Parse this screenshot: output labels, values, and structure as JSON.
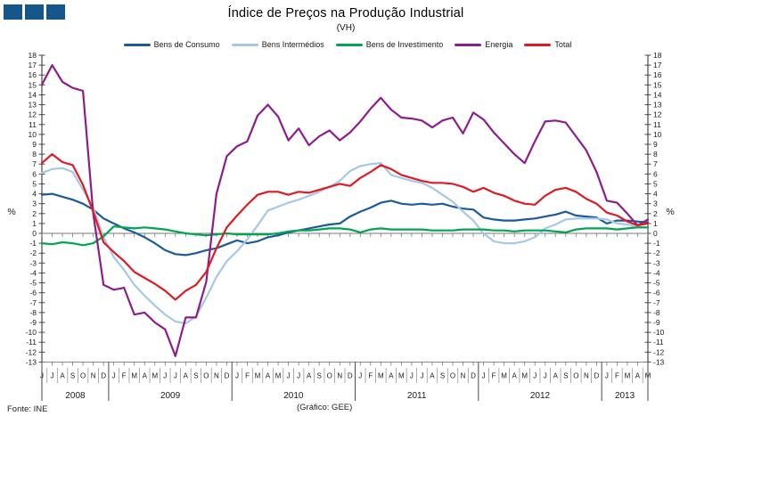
{
  "header": {
    "title": "Índice de Preços na Produção Industrial",
    "subtitle": "(VH)",
    "logo_squares": 3,
    "logo_color": "#15568C"
  },
  "footer": {
    "source": "Fonte: INE",
    "credit": "(Gráfico:  GEE)"
  },
  "axis": {
    "y_unit_label": "%",
    "y_min": -13,
    "y_max": 18,
    "y_step": 1
  },
  "chart_data": {
    "type": "line",
    "title": "Índice de Preços na Produção Industrial",
    "subtitle": "(VH)",
    "ylabel": "%",
    "ylim": [
      -13,
      18
    ],
    "grid": false,
    "legend_position": "top",
    "x_months": [
      "J",
      "J",
      "A",
      "S",
      "O",
      "N",
      "D",
      "J",
      "F",
      "M",
      "A",
      "M",
      "J",
      "J",
      "A",
      "S",
      "O",
      "N",
      "D",
      "J",
      "F",
      "M",
      "A",
      "M",
      "J",
      "J",
      "A",
      "S",
      "O",
      "N",
      "D",
      "J",
      "F",
      "M",
      "A",
      "M",
      "J",
      "J",
      "A",
      "S",
      "O",
      "N",
      "D",
      "J",
      "F",
      "M",
      "A",
      "M",
      "J",
      "J",
      "A",
      "S",
      "O",
      "N",
      "D",
      "J",
      "F",
      "M",
      "A",
      "M"
    ],
    "years": [
      {
        "label": "2008",
        "months": 7
      },
      {
        "label": "2009",
        "months": 12
      },
      {
        "label": "2010",
        "months": 12
      },
      {
        "label": "2011",
        "months": 12
      },
      {
        "label": "2012",
        "months": 12
      },
      {
        "label": "2013",
        "months": 5
      }
    ],
    "series": [
      {
        "name": "Bens de Consumo",
        "color": "#1B5A9B",
        "values": [
          3.9,
          4.0,
          3.7,
          3.4,
          3.0,
          2.4,
          1.5,
          1.0,
          0.5,
          0.1,
          -0.4,
          -1.0,
          -1.7,
          -2.1,
          -2.2,
          -2.0,
          -1.7,
          -1.5,
          -1.1,
          -0.7,
          -1.0,
          -0.8,
          -0.4,
          -0.2,
          0.1,
          0.3,
          0.5,
          0.7,
          0.9,
          1.0,
          1.7,
          2.2,
          2.6,
          3.1,
          3.3,
          3.0,
          2.9,
          3.0,
          2.9,
          3.0,
          2.7,
          2.5,
          2.4,
          1.6,
          1.4,
          1.3,
          1.3,
          1.4,
          1.5,
          1.7,
          1.9,
          2.2,
          1.8,
          1.7,
          1.6,
          1.0,
          1.3,
          1.3,
          1.2,
          1.1
        ]
      },
      {
        "name": "Bens Intermédios",
        "color": "#A5C8E8",
        "values": [
          6.1,
          6.5,
          6.6,
          6.2,
          4.4,
          2.6,
          -0.4,
          -2.4,
          -3.7,
          -5.2,
          -6.3,
          -7.3,
          -8.2,
          -8.9,
          -9.1,
          -8.4,
          -6.5,
          -4.4,
          -2.8,
          -1.8,
          -0.6,
          0.8,
          2.3,
          2.7,
          3.1,
          3.4,
          3.8,
          4.2,
          4.7,
          5.3,
          6.3,
          6.8,
          7.0,
          7.1,
          5.9,
          5.6,
          5.3,
          5.1,
          4.6,
          3.9,
          3.2,
          2.2,
          1.3,
          0.0,
          -0.8,
          -1.0,
          -1.0,
          -0.8,
          -0.4,
          0.5,
          0.9,
          1.4,
          1.5,
          1.5,
          1.5,
          1.4,
          1.0,
          0.9,
          0.6,
          0.6
        ]
      },
      {
        "name": "Bens de Investimento",
        "color": "#00A550",
        "values": [
          -1.0,
          -1.1,
          -0.9,
          -1.0,
          -1.2,
          -1.0,
          -0.3,
          0.7,
          0.6,
          0.5,
          0.6,
          0.5,
          0.4,
          0.2,
          0.0,
          -0.1,
          -0.2,
          -0.1,
          0.0,
          -0.1,
          -0.1,
          -0.1,
          -0.1,
          0.0,
          0.2,
          0.3,
          0.3,
          0.4,
          0.5,
          0.5,
          0.4,
          0.1,
          0.4,
          0.5,
          0.4,
          0.4,
          0.4,
          0.4,
          0.3,
          0.3,
          0.3,
          0.4,
          0.4,
          0.4,
          0.3,
          0.3,
          0.2,
          0.3,
          0.3,
          0.3,
          0.2,
          0.1,
          0.4,
          0.5,
          0.5,
          0.5,
          0.4,
          0.5,
          0.6,
          0.6
        ]
      },
      {
        "name": "Energia",
        "color": "#8C1E8C",
        "values": [
          15.0,
          17.0,
          15.3,
          14.7,
          14.4,
          2.0,
          -5.2,
          -5.7,
          -5.5,
          -8.2,
          -8.0,
          -9.0,
          -9.7,
          -12.4,
          -8.5,
          -8.5,
          -4.9,
          4.0,
          7.8,
          8.8,
          9.3,
          11.9,
          13.0,
          11.8,
          9.4,
          10.6,
          8.9,
          9.8,
          10.4,
          9.4,
          10.2,
          11.3,
          12.6,
          13.7,
          12.5,
          11.7,
          11.6,
          11.4,
          10.7,
          11.4,
          11.7,
          10.1,
          12.2,
          11.5,
          10.2,
          9.1,
          8.0,
          7.1,
          9.3,
          11.3,
          11.4,
          11.2,
          9.8,
          8.4,
          6.2,
          3.3,
          3.1,
          2.0,
          0.8,
          1.4
        ]
      },
      {
        "name": "Total",
        "color": "#E01A22",
        "values": [
          7.1,
          8.0,
          7.2,
          6.9,
          4.9,
          2.2,
          -0.9,
          -1.9,
          -2.8,
          -3.9,
          -4.5,
          -5.1,
          -5.8,
          -6.7,
          -5.8,
          -5.2,
          -3.9,
          -1.5,
          0.6,
          1.8,
          2.9,
          3.9,
          4.2,
          4.2,
          3.9,
          4.2,
          4.1,
          4.4,
          4.7,
          5.0,
          4.8,
          5.6,
          6.2,
          6.9,
          6.5,
          5.9,
          5.6,
          5.3,
          5.1,
          5.1,
          5.0,
          4.7,
          4.2,
          4.6,
          4.1,
          3.8,
          3.3,
          3.0,
          2.9,
          3.8,
          4.4,
          4.6,
          4.2,
          3.5,
          3.0,
          2.1,
          1.8,
          1.2,
          0.8,
          1.0
        ]
      }
    ]
  }
}
